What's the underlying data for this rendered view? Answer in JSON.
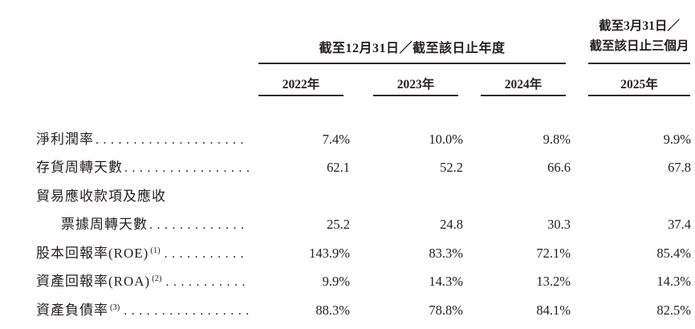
{
  "page": {
    "background_color": "#ffffff",
    "text_color": "#231f20",
    "rule_color": "#2e2a2b"
  },
  "table": {
    "header": {
      "annual_group": "截至12月31日／截至該日止年度",
      "quarterly_group_line1": "截至3月31日／",
      "quarterly_group_line2": "截至該日止三個月",
      "years": [
        "2022年",
        "2023年",
        "2024年",
        "2025年"
      ]
    },
    "rows": [
      {
        "label": "淨利潤率",
        "sup": "",
        "indent": false,
        "dots": true,
        "values": [
          "7.4%",
          "10.0%",
          "9.8%",
          "9.9%"
        ]
      },
      {
        "label": "存貨周轉天數",
        "sup": "",
        "indent": false,
        "dots": true,
        "values": [
          "62.1",
          "52.2",
          "66.6",
          "67.8"
        ]
      },
      {
        "label": "貿易應收款項及應收",
        "sup": "",
        "indent": false,
        "dots": false,
        "values": [
          "",
          "",
          "",
          ""
        ]
      },
      {
        "label": "票據周轉天數",
        "sup": "",
        "indent": true,
        "dots": true,
        "values": [
          "25.2",
          "24.8",
          "30.3",
          "37.4"
        ]
      },
      {
        "label": "股本回報率(ROE)",
        "sup": "(1)",
        "indent": false,
        "dots": true,
        "values": [
          "143.9%",
          "83.3%",
          "72.1%",
          "85.4%"
        ]
      },
      {
        "label": "資產回報率(ROA)",
        "sup": "(2)",
        "indent": false,
        "dots": true,
        "values": [
          "9.9%",
          "14.3%",
          "13.2%",
          "14.3%"
        ]
      },
      {
        "label": "資產負債率",
        "sup": "(3)",
        "indent": false,
        "dots": true,
        "values": [
          "88.3%",
          "78.8%",
          "84.1%",
          "82.5%"
        ]
      }
    ]
  }
}
